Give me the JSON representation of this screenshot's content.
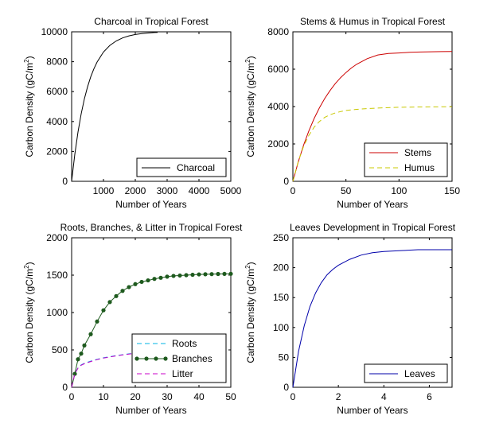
{
  "chart_data": [
    {
      "type": "line",
      "title": "Charcoal in Tropical Forest",
      "xlabel": "Number of Years",
      "ylabel_main": "Carbon Density (gC/m",
      "ylabel_sup": "2",
      "ylabel_end": ")",
      "xlim": [
        0,
        5000
      ],
      "ylim": [
        0,
        10000
      ],
      "xticks": [
        1000,
        2000,
        3000,
        4000,
        5000
      ],
      "yticks": [
        0,
        2000,
        4000,
        6000,
        8000,
        10000
      ],
      "legend_position": "bottom-right",
      "series": [
        {
          "name": "Charcoal",
          "color": "#000000",
          "style": "solid",
          "x": [
            0,
            100,
            200,
            300,
            400,
            500,
            600,
            700,
            800,
            1000,
            1200,
            1400,
            1600,
            1800,
            2000,
            2200,
            2400,
            2600,
            2700
          ],
          "y": [
            0,
            1810,
            3300,
            4510,
            5510,
            6320,
            6990,
            7530,
            7980,
            8650,
            9090,
            9390,
            9590,
            9730,
            9820,
            9880,
            9920,
            9950,
            9960
          ]
        }
      ]
    },
    {
      "type": "line",
      "title": "Stems & Humus  in Tropical Forest",
      "xlabel": "Number of Years",
      "ylabel_main": "Carbon Density (gC/m",
      "ylabel_sup": "2",
      "ylabel_end": ")",
      "xlim": [
        0,
        150
      ],
      "ylim": [
        0,
        8000
      ],
      "xticks": [
        0,
        50,
        100,
        150
      ],
      "yticks": [
        0,
        2000,
        4000,
        6000,
        8000
      ],
      "legend_position": "bottom-right",
      "series": [
        {
          "name": "Stems",
          "color": "#cc0000",
          "style": "solid",
          "x": [
            0,
            5,
            10,
            15,
            20,
            25,
            30,
            35,
            40,
            45,
            50,
            55,
            60,
            70,
            80,
            90,
            100,
            110,
            120,
            130,
            140,
            150
          ],
          "y": [
            0,
            1030,
            1920,
            2690,
            3360,
            3930,
            4430,
            4860,
            5230,
            5550,
            5820,
            6060,
            6260,
            6560,
            6760,
            6840,
            6870,
            6900,
            6920,
            6930,
            6940,
            6950
          ]
        },
        {
          "name": "Humus",
          "color": "#c8c800",
          "style": "dashed",
          "x": [
            0,
            5,
            10,
            15,
            20,
            25,
            30,
            35,
            40,
            45,
            50,
            60,
            70,
            80,
            90,
            100,
            120,
            150
          ],
          "y": [
            0,
            1050,
            1850,
            2450,
            2900,
            3200,
            3420,
            3560,
            3660,
            3730,
            3790,
            3850,
            3890,
            3920,
            3940,
            3960,
            3980,
            3990
          ]
        }
      ]
    },
    {
      "type": "line",
      "title": "Roots, Branches, & Litter in Tropical Forest",
      "xlabel": "Number of Years",
      "ylabel_main": "Carbon Density (gC/m",
      "ylabel_sup": "2",
      "ylabel_end": ")",
      "xlim": [
        0,
        50
      ],
      "ylim": [
        0,
        2000
      ],
      "xticks": [
        0,
        10,
        20,
        30,
        40,
        50
      ],
      "yticks": [
        0,
        500,
        1000,
        1500,
        2000
      ],
      "legend_position": "bottom-right",
      "series": [
        {
          "name": "Roots",
          "color": "#00b4e6",
          "style": "dashed",
          "x": [
            0,
            1,
            2,
            3,
            4,
            6,
            8,
            10,
            14,
            18,
            22,
            26,
            30,
            34
          ],
          "y": [
            0,
            180,
            260,
            300,
            320,
            350,
            375,
            395,
            425,
            448,
            465,
            478,
            488,
            495
          ]
        },
        {
          "name": "Branches",
          "color": "#1e5a1e",
          "style": "solid-markers",
          "x": [
            0,
            1,
            2,
            3,
            4,
            6,
            8,
            10,
            12,
            14,
            16,
            18,
            20,
            22,
            24,
            26,
            28,
            30,
            32,
            34,
            36,
            38,
            40,
            42,
            44,
            46,
            48,
            50
          ],
          "y": [
            0,
            180,
            375,
            450,
            560,
            710,
            880,
            1030,
            1140,
            1220,
            1290,
            1340,
            1380,
            1410,
            1430,
            1450,
            1465,
            1480,
            1490,
            1495,
            1500,
            1505,
            1510,
            1512,
            1514,
            1516,
            1517,
            1518
          ]
        },
        {
          "name": "Litter",
          "color": "#c800c8",
          "style": "dashed",
          "x": [
            0,
            1,
            2,
            3,
            4,
            6,
            8,
            10,
            14,
            18,
            22,
            26,
            30,
            34
          ],
          "y": [
            0,
            180,
            255,
            295,
            315,
            345,
            370,
            390,
            420,
            445,
            462,
            475,
            486,
            493
          ]
        }
      ],
      "marker_x": [
        1,
        2,
        3,
        4,
        6,
        8,
        10,
        12,
        14,
        16,
        18,
        20,
        22,
        24,
        26,
        28,
        30,
        32,
        34,
        36,
        38,
        40,
        42,
        44,
        46,
        48,
        50
      ]
    },
    {
      "type": "line",
      "title": "Leaves Development in Tropical Forest",
      "xlabel": "Number of Years",
      "ylabel_main": "Carbon Density (gC/m",
      "ylabel_sup": "2",
      "ylabel_end": ")",
      "xlim": [
        0,
        7
      ],
      "ylim": [
        0,
        250
      ],
      "xticks": [
        0,
        2,
        4,
        6
      ],
      "yticks": [
        0,
        50,
        100,
        150,
        200,
        250
      ],
      "legend_position": "bottom-right",
      "series": [
        {
          "name": "Leaves",
          "color": "#0000aa",
          "style": "solid",
          "x": [
            0,
            0.25,
            0.5,
            0.75,
            1,
            1.25,
            1.5,
            1.75,
            2,
            2.5,
            3,
            3.5,
            4,
            4.5,
            5,
            5.5,
            6,
            6.5,
            7
          ],
          "y": [
            0,
            60,
            103,
            135,
            158,
            175,
            188,
            197,
            204,
            214,
            221,
            225,
            227,
            228,
            229,
            230,
            230,
            230,
            230
          ]
        }
      ]
    }
  ]
}
